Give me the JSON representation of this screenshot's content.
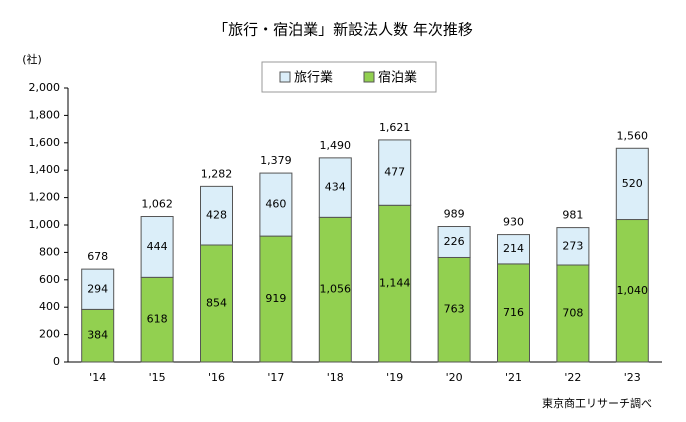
{
  "chart_data": {
    "type": "stacked_bar",
    "title": "「旅行・宿泊業」新設法人数 年次推移",
    "y_label": "(社)",
    "source": "東京商工リサーチ調べ",
    "categories": [
      "'14",
      "'15",
      "'16",
      "'17",
      "'18",
      "'19",
      "'20",
      "'21",
      "'22",
      "'23"
    ],
    "series": [
      {
        "name": "宿泊業",
        "color": "#92d050",
        "values": [
          384,
          618,
          854,
          919,
          1056,
          1144,
          763,
          716,
          708,
          1040
        ],
        "value_labels": [
          "384",
          "618",
          "854",
          "919",
          "1,056",
          "1,144",
          "763",
          "716",
          "708",
          "1,040"
        ]
      },
      {
        "name": "旅行業",
        "color": "#dbeef9",
        "values": [
          294,
          444,
          428,
          460,
          434,
          477,
          226,
          214,
          273,
          520
        ],
        "value_labels": [
          "294",
          "444",
          "428",
          "460",
          "434",
          "477",
          "226",
          "214",
          "273",
          "520"
        ]
      }
    ],
    "totals": {
      "color": "#c0392b",
      "values": [
        678,
        1062,
        1282,
        1379,
        1490,
        1621,
        989,
        930,
        981,
        1560
      ],
      "value_labels": [
        "678",
        "1,062",
        "1,282",
        "1,379",
        "1,490",
        "1,621",
        "989",
        "930",
        "981",
        "1,560"
      ]
    },
    "ylim": [
      0,
      2000
    ],
    "yticks": [
      0,
      200,
      400,
      600,
      800,
      {
        "value": 1000,
        "label": "1,000"
      },
      {
        "value": 1200,
        "label": "1,200"
      },
      {
        "value": 1400,
        "label": "1,400"
      },
      {
        "value": 1600,
        "label": "1,600"
      },
      {
        "value": 1800,
        "label": "1,800"
      },
      {
        "value": 2000,
        "label": "2,000"
      }
    ],
    "grid": false
  }
}
